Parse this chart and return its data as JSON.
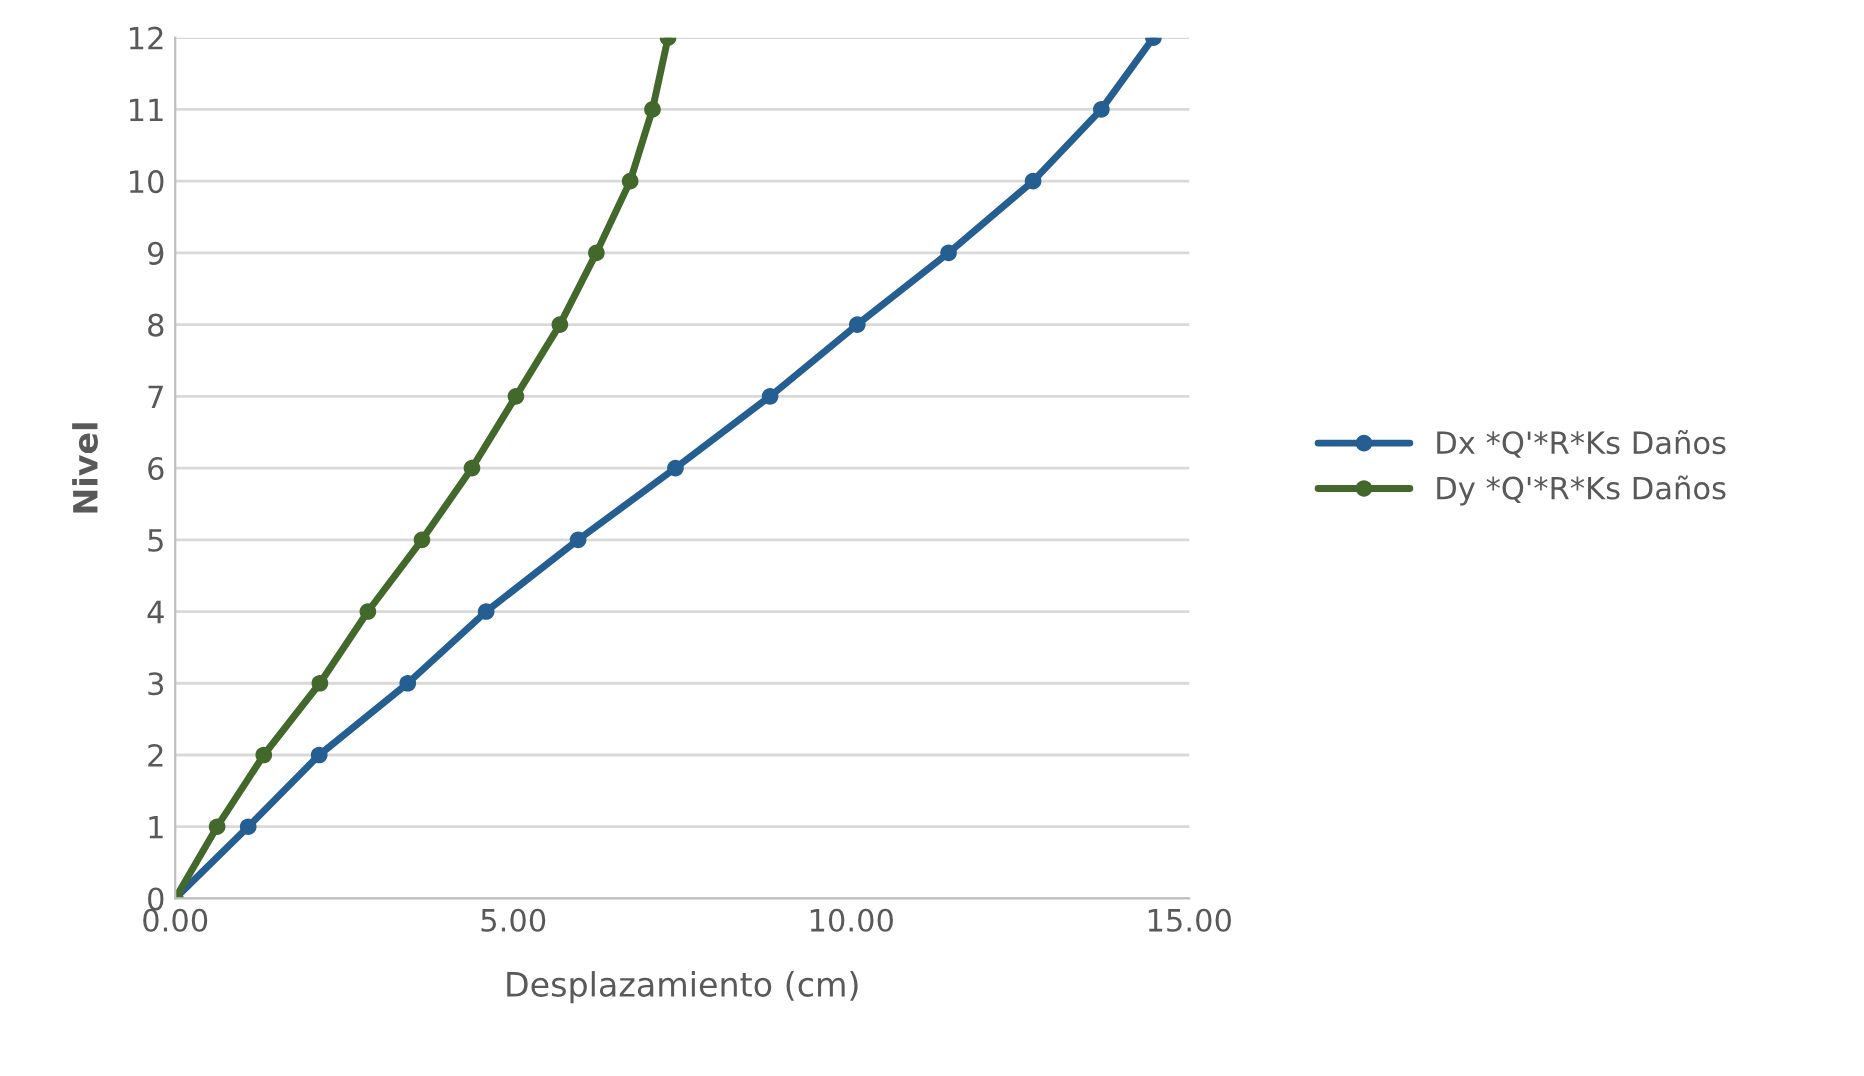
{
  "chart_data": {
    "type": "line",
    "xlabel": "Desplazamiento (cm)",
    "ylabel": "Nivel",
    "xlim": [
      0,
      15
    ],
    "ylim": [
      0,
      12
    ],
    "xticks": [
      {
        "value": 0,
        "label": "0.00"
      },
      {
        "value": 5,
        "label": "5.00"
      },
      {
        "value": 10,
        "label": "10.00"
      },
      {
        "value": 15,
        "label": "15.00"
      }
    ],
    "yticks": [
      0,
      1,
      2,
      3,
      4,
      5,
      6,
      7,
      8,
      9,
      10,
      11,
      12
    ],
    "grid": "y",
    "legend": "right",
    "marker": "circle",
    "line_style": "solid",
    "series": [
      {
        "name": "Dx *Q'*R*Ks Daños",
        "color": "#255e91",
        "x": [
          0,
          1.08,
          2.13,
          3.44,
          4.6,
          5.96,
          7.4,
          8.8,
          10.09,
          11.44,
          12.69,
          13.7,
          14.47
        ],
        "values": [
          0,
          1,
          2,
          3,
          4,
          5,
          6,
          7,
          8,
          9,
          10,
          11,
          12
        ]
      },
      {
        "name": "Dy *Q'*R*Ks Daños",
        "color": "#43682b",
        "x": [
          0,
          0.62,
          1.31,
          2.14,
          2.85,
          3.65,
          4.39,
          5.04,
          5.69,
          6.23,
          6.73,
          7.06,
          7.29
        ],
        "values": [
          0,
          1,
          2,
          3,
          4,
          5,
          6,
          7,
          8,
          9,
          10,
          11,
          12
        ]
      }
    ]
  }
}
